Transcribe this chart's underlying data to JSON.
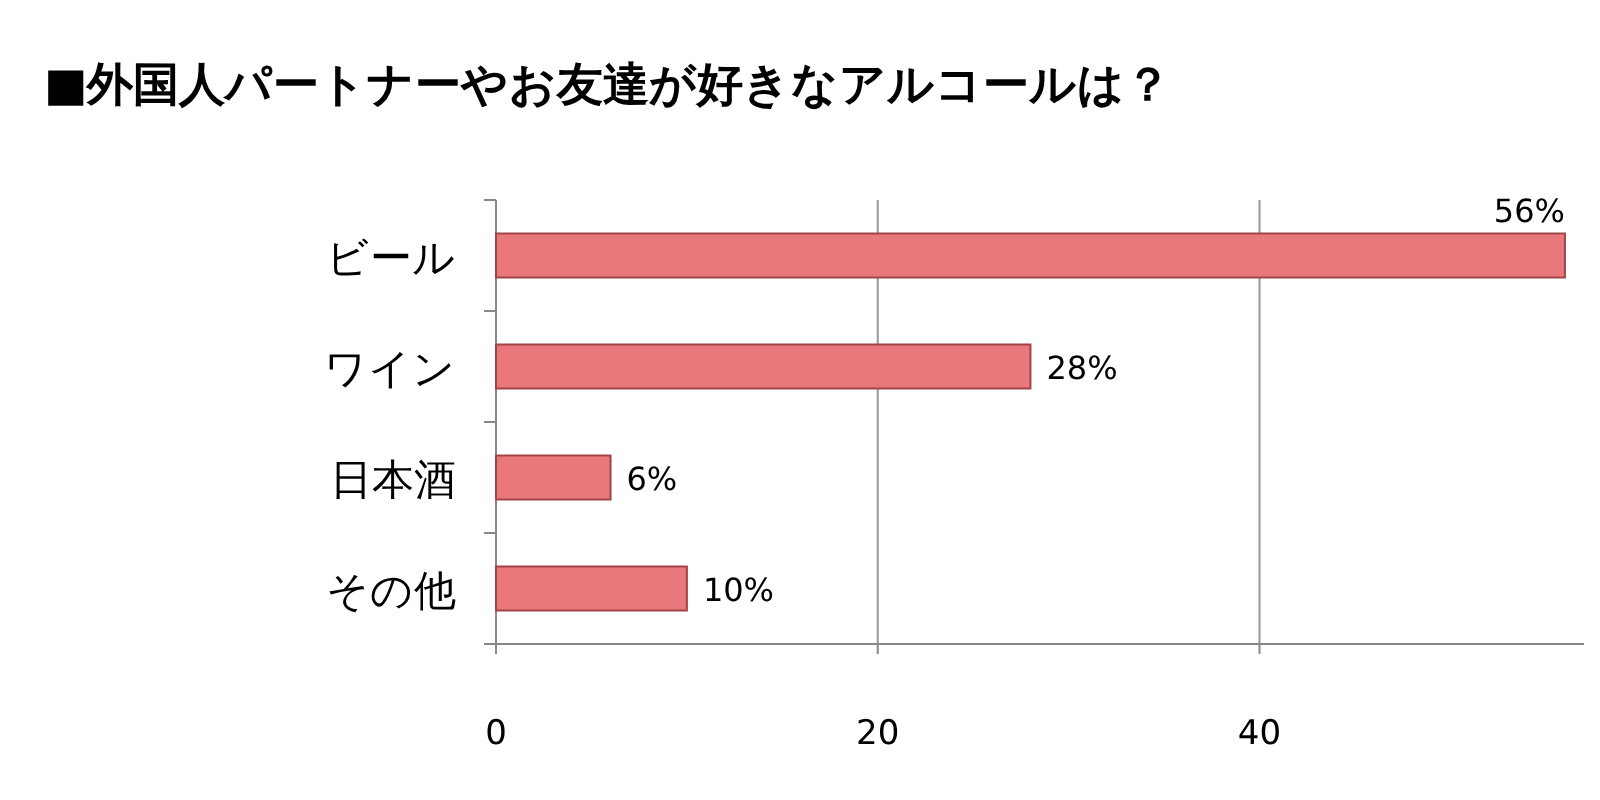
{
  "chart_data": {
    "type": "bar",
    "orientation": "horizontal",
    "title": "■外国人パートナーやお友達が好きなアルコールは？",
    "categories": [
      "ビール",
      "ワイン",
      "日本酒",
      "その他"
    ],
    "values": [
      56,
      28,
      6,
      10
    ],
    "color": "#e8787c",
    "value_labels": [
      "56%",
      "28%",
      "6%",
      "10%"
    ],
    "xlim": [
      0,
      57
    ],
    "xticks": [
      0,
      20,
      40
    ],
    "grid": "x"
  }
}
